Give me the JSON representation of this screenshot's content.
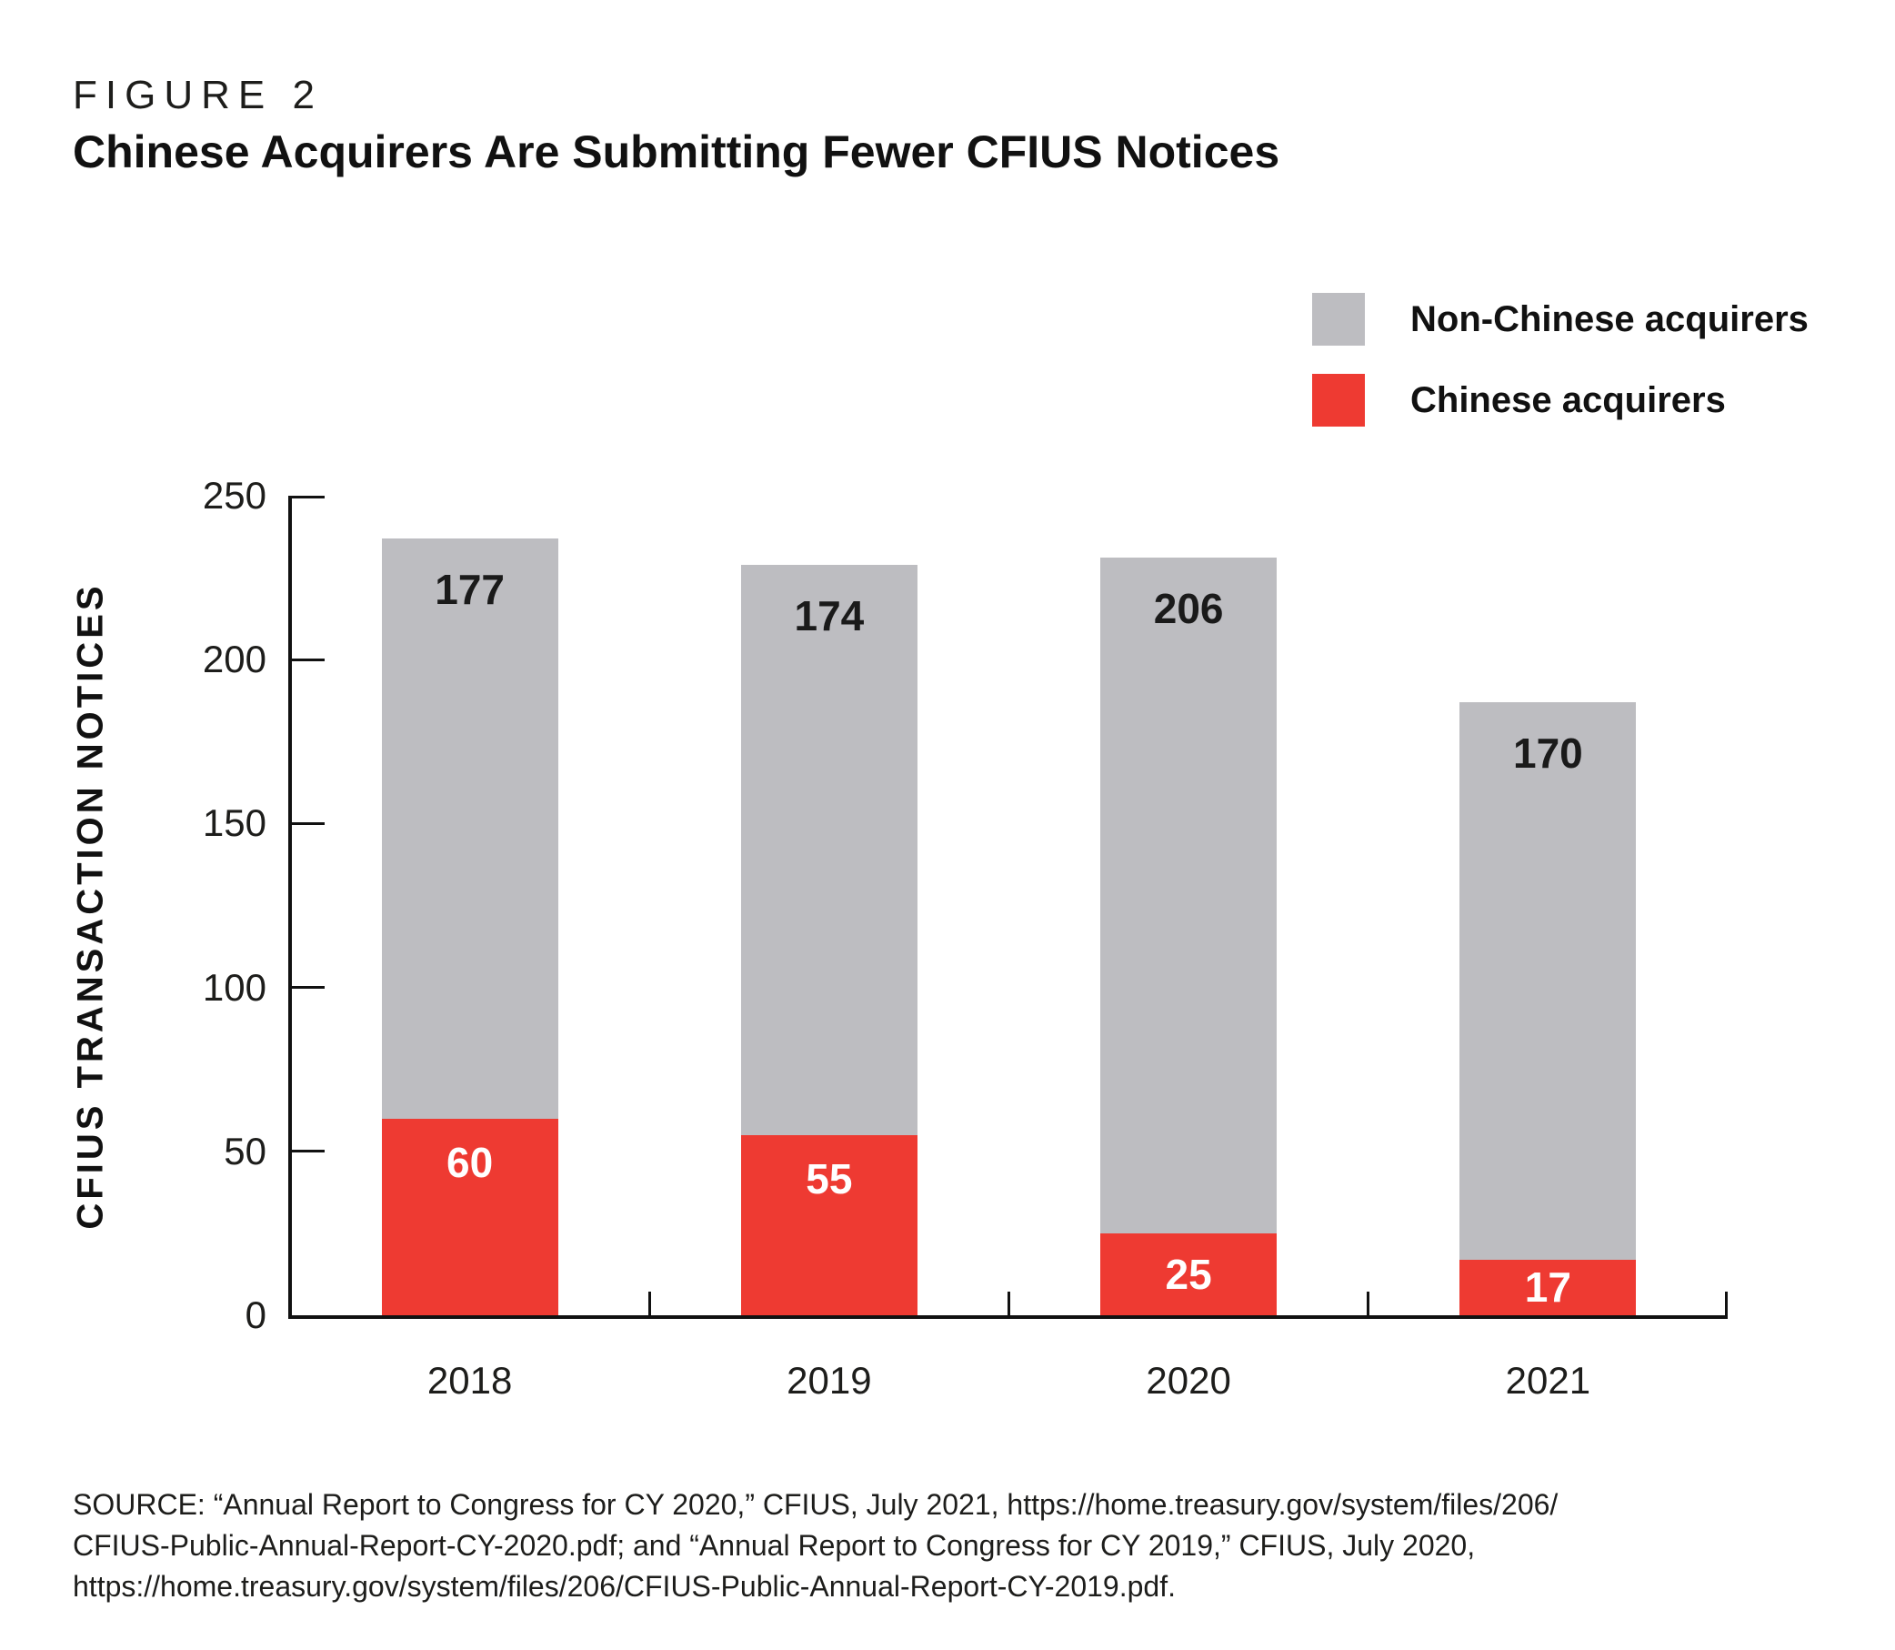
{
  "header": {
    "figure_label": "FIGURE 2",
    "title": "Chinese Acquirers Are Submitting Fewer CFIUS Notices"
  },
  "legend": {
    "items": [
      {
        "label": "Non-Chinese acquirers",
        "color": "#bdbdc1"
      },
      {
        "label": "Chinese acquirers",
        "color": "#ee3a32"
      }
    ]
  },
  "chart_data": {
    "type": "bar",
    "stacked": true,
    "title": "Chinese Acquirers Are Submitting Fewer CFIUS Notices",
    "categories": [
      "2018",
      "2019",
      "2020",
      "2021"
    ],
    "series": [
      {
        "name": "Chinese acquirers",
        "color": "#ee3a32",
        "label_color": "#ffffff",
        "values": [
          60,
          55,
          25,
          17
        ]
      },
      {
        "name": "Non-Chinese acquirers",
        "color": "#bdbdc1",
        "label_color": "#1a1a1a",
        "values": [
          177,
          174,
          206,
          170
        ]
      }
    ],
    "totals": [
      237,
      229,
      231,
      187
    ],
    "xlabel": "",
    "ylabel": "CFIUS TRANSACTION NOTICES",
    "ylim": [
      0,
      250
    ],
    "yticks": [
      0,
      50,
      100,
      150,
      200,
      250
    ],
    "grid": false,
    "legend_position": "top-right",
    "value_labels_shown": true
  },
  "source": {
    "lines": [
      "SOURCE: “Annual Report to Congress for CY 2020,” CFIUS, July 2021, https://home.treasury.gov/system/files/206/",
      "CFIUS-Public-Annual-Report-CY-2020.pdf; and “Annual Report to Congress for CY 2019,” CFIUS, July 2020,",
      "https://home.treasury.gov/system/files/206/CFIUS-Public-Annual-Report-CY-2019.pdf."
    ]
  }
}
